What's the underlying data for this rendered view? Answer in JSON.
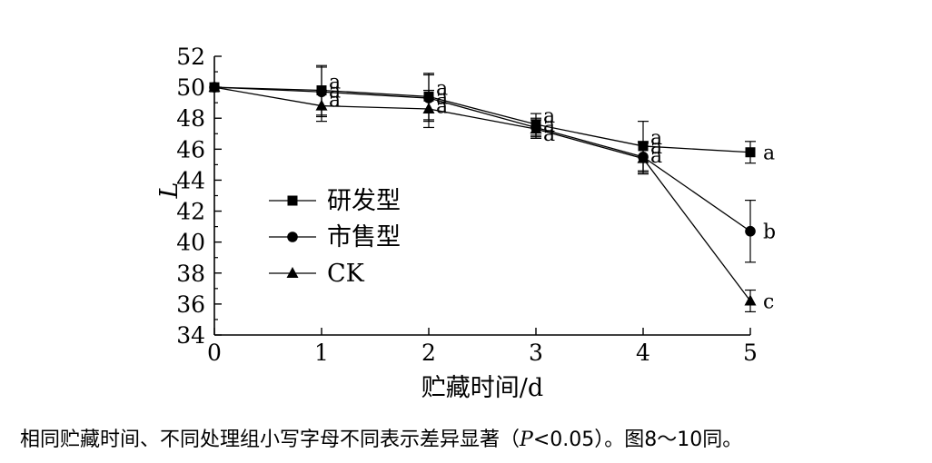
{
  "chart_data": {
    "type": "line",
    "xlabel": "贮藏时间/d",
    "ylabel": "L",
    "x": [
      0,
      1,
      2,
      3,
      4,
      5
    ],
    "xlim": [
      0,
      5
    ],
    "ylim": [
      34,
      52
    ],
    "yticks": [
      34,
      36,
      38,
      40,
      42,
      44,
      46,
      48,
      50,
      52
    ],
    "grid": false,
    "legend_position": "left-center",
    "series": [
      {
        "name": "研发型",
        "marker": "square",
        "values": [
          50.0,
          49.8,
          49.4,
          47.6,
          46.2,
          45.8
        ],
        "errors": [
          0.0,
          1.6,
          1.5,
          0.7,
          1.6,
          0.7
        ],
        "labels": [
          "",
          "a",
          "a",
          "a",
          "a",
          "a"
        ]
      },
      {
        "name": "市售型",
        "marker": "circle",
        "values": [
          50.0,
          49.7,
          49.3,
          47.4,
          45.5,
          40.7
        ],
        "errors": [
          0.0,
          1.6,
          1.5,
          0.6,
          1.0,
          2.0
        ],
        "labels": [
          "",
          "a",
          "a",
          "a",
          "a",
          "b"
        ]
      },
      {
        "name": "CK",
        "marker": "triangle",
        "values": [
          50.0,
          48.8,
          48.6,
          47.3,
          45.4,
          36.2
        ],
        "errors": [
          0.0,
          1.0,
          1.2,
          0.6,
          1.0,
          0.7
        ],
        "labels": [
          "",
          "a",
          "a",
          "a",
          "a",
          "c"
        ]
      }
    ]
  },
  "caption": {
    "prefix": "相同贮藏时间、不同处理组小写字母不同表示差异显著（",
    "italic": "P",
    "suffix": "<0.05）。图8～10同。"
  }
}
